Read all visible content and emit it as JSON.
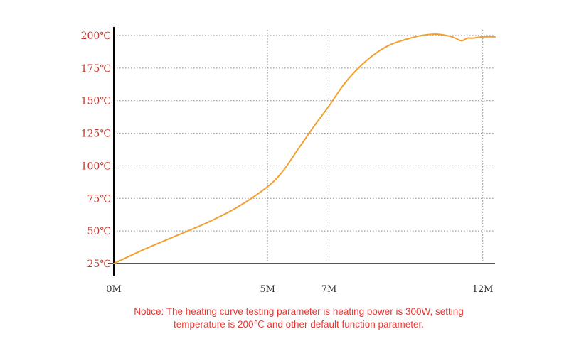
{
  "chart_data": {
    "type": "line",
    "title": "",
    "xlabel": "",
    "ylabel": "",
    "x_ticks": [
      {
        "value": 0,
        "label": "0M"
      },
      {
        "value": 5,
        "label": "5M"
      },
      {
        "value": 7,
        "label": "7M"
      },
      {
        "value": 12,
        "label": "12M"
      }
    ],
    "y_ticks": [
      {
        "value": 25,
        "label": "25℃"
      },
      {
        "value": 50,
        "label": "50℃"
      },
      {
        "value": 75,
        "label": "75℃"
      },
      {
        "value": 100,
        "label": "100℃"
      },
      {
        "value": 125,
        "label": "125℃"
      },
      {
        "value": 150,
        "label": "150℃"
      },
      {
        "value": 175,
        "label": "175℃"
      },
      {
        "value": 200,
        "label": "200℃"
      }
    ],
    "xlim": [
      0,
      12.4
    ],
    "ylim": [
      25,
      200
    ],
    "grid": "horizontal-dotted",
    "series": [
      {
        "name": "",
        "color": "#f0a030",
        "x": [
          0,
          1,
          2,
          3,
          4,
          5,
          5.5,
          6,
          6.5,
          7,
          7.5,
          8,
          8.5,
          9,
          9.5,
          10,
          10.5,
          11,
          11.3,
          11.5,
          11.7,
          12,
          12.4
        ],
        "y": [
          25,
          36,
          46,
          56,
          68,
          84,
          96,
          113,
          130,
          146,
          163,
          176,
          186,
          193,
          197,
          200,
          201,
          199,
          196,
          198,
          198,
          199,
          199
        ]
      }
    ]
  },
  "notice": {
    "line1": "Notice: The heating curve testing parameter is heating power is 300W, setting",
    "line2": "temperature is 200℃ and other default function parameter."
  },
  "colors": {
    "curve": "#f0a030",
    "y_labels": "#c0392b",
    "notice": "#e53935",
    "axis": "#000000",
    "grid": "#888888"
  }
}
